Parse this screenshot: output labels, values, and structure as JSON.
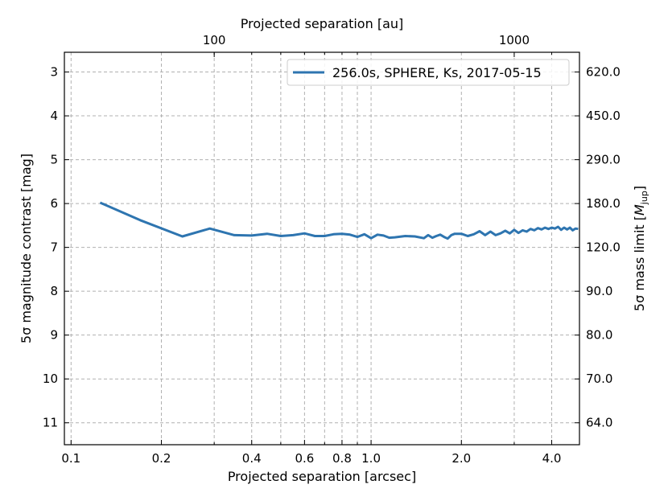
{
  "chart_data": {
    "type": "line",
    "xlabel": "Projected separation [arcsec]",
    "ylabel": "5σ magnitude contrast [mag]",
    "top_xlabel": "Projected separation [au]",
    "right_ylabel": "5σ mass limit [M_jup]",
    "right_ylabel_parts": {
      "prefix": "5σ mass limit [",
      "symbol": "M",
      "sub": "jup",
      "suffix": "]"
    },
    "xscale": "log",
    "xlim": [
      0.095,
      4.95
    ],
    "ylim": [
      11.5,
      2.55
    ],
    "y_inverted": true,
    "grid": true,
    "x_ticks": [
      {
        "value": 0.1,
        "label": "0.1"
      },
      {
        "value": 0.2,
        "label": "0.2"
      },
      {
        "value": 0.4,
        "label": "0.4"
      },
      {
        "value": 0.6,
        "label": "0.6"
      },
      {
        "value": 0.8,
        "label": "0.8"
      },
      {
        "value": 1.0,
        "label": "1.0"
      },
      {
        "value": 2.0,
        "label": "2.0"
      },
      {
        "value": 4.0,
        "label": "4.0"
      }
    ],
    "x_grid_values": [
      0.1,
      0.2,
      0.3,
      0.4,
      0.5,
      0.6,
      0.7,
      0.8,
      0.9,
      1.0,
      2.0,
      3.0,
      4.0
    ],
    "y_ticks": [
      3,
      4,
      5,
      6,
      7,
      8,
      9,
      10,
      11
    ],
    "right_y_ticks": [
      {
        "value": 3,
        "label": "620.0"
      },
      {
        "value": 4,
        "label": "450.0"
      },
      {
        "value": 5,
        "label": "290.0"
      },
      {
        "value": 6,
        "label": "180.0"
      },
      {
        "value": 7,
        "label": "120.0"
      },
      {
        "value": 8,
        "label": "90.0"
      },
      {
        "value": 9,
        "label": "80.0"
      },
      {
        "value": 10,
        "label": "70.0"
      },
      {
        "value": 11,
        "label": "64.0"
      }
    ],
    "top_x_ticks": [
      {
        "arcsec": 0.3,
        "label": "100"
      },
      {
        "arcsec": 3.0,
        "label": "1000"
      }
    ],
    "series": [
      {
        "name": "256.0s, SPHERE, Ks, 2017-05-15",
        "color": "#2e75b0",
        "x": [
          0.125,
          0.17,
          0.235,
          0.29,
          0.35,
          0.4,
          0.45,
          0.5,
          0.55,
          0.6,
          0.65,
          0.7,
          0.75,
          0.8,
          0.85,
          0.9,
          0.95,
          1.0,
          1.05,
          1.1,
          1.15,
          1.2,
          1.3,
          1.4,
          1.5,
          1.55,
          1.6,
          1.65,
          1.7,
          1.75,
          1.8,
          1.85,
          1.9,
          2.0,
          2.1,
          2.2,
          2.3,
          2.4,
          2.5,
          2.6,
          2.7,
          2.8,
          2.9,
          3.0,
          3.1,
          3.2,
          3.3,
          3.4,
          3.5,
          3.6,
          3.7,
          3.8,
          3.9,
          4.0,
          4.1,
          4.2,
          4.3,
          4.4,
          4.5,
          4.6,
          4.7,
          4.8,
          4.9
        ],
        "y": [
          5.98,
          6.38,
          6.75,
          6.57,
          6.72,
          6.73,
          6.69,
          6.74,
          6.72,
          6.68,
          6.74,
          6.74,
          6.7,
          6.69,
          6.71,
          6.76,
          6.7,
          6.79,
          6.71,
          6.73,
          6.78,
          6.77,
          6.74,
          6.75,
          6.79,
          6.72,
          6.78,
          6.74,
          6.71,
          6.76,
          6.8,
          6.72,
          6.69,
          6.69,
          6.74,
          6.7,
          6.63,
          6.72,
          6.64,
          6.72,
          6.68,
          6.62,
          6.68,
          6.6,
          6.67,
          6.61,
          6.64,
          6.58,
          6.61,
          6.56,
          6.59,
          6.55,
          6.58,
          6.55,
          6.57,
          6.53,
          6.6,
          6.55,
          6.59,
          6.55,
          6.61,
          6.57,
          6.58
        ]
      }
    ],
    "legend_location": "top-right"
  }
}
